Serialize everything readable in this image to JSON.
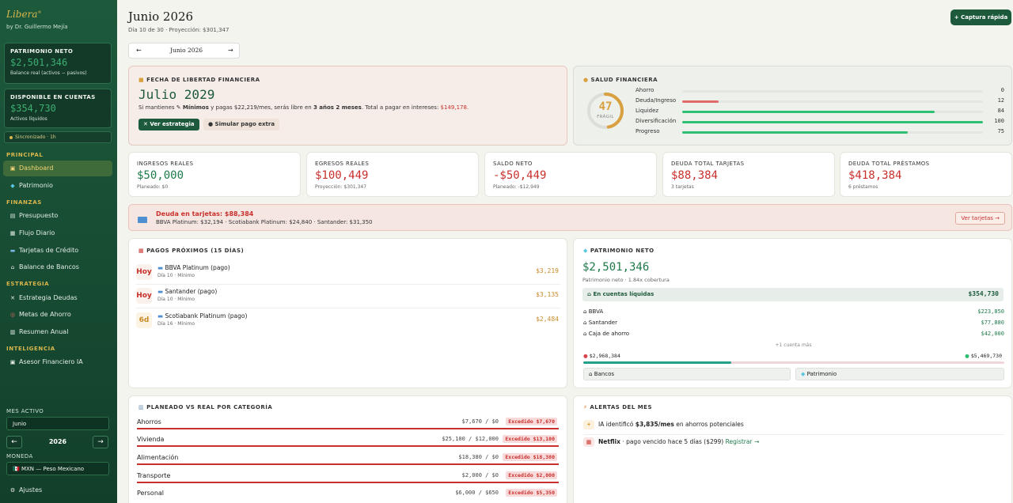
{
  "app": {
    "logo": "Libera",
    "logo_mark": "®",
    "byline": "by Dr. Guillermo Mejía"
  },
  "sidebar": {
    "net_worth": {
      "title": "PATRIMONIO NETO",
      "value": "$2,501,346",
      "sub": "Balance real (activos − pasivos)"
    },
    "available": {
      "title": "DISPONIBLE EN CUENTAS",
      "value": "$354,730",
      "sub": "Activos líquidos"
    },
    "sync": "Sincronizado · 1h",
    "sections": {
      "principal": "PRINCIPAL",
      "finanzas": "FINANZAS",
      "estrategia": "ESTRATEGIA",
      "inteligencia": "INTELIGENCIA"
    },
    "items": [
      {
        "label": "Dashboard",
        "icon": "home-icon"
      },
      {
        "label": "Patrimonio",
        "icon": "diamond-icon"
      },
      {
        "label": "Presupuesto",
        "icon": "clipboard-icon"
      },
      {
        "label": "Flujo Diario",
        "icon": "calendar-icon"
      },
      {
        "label": "Tarjetas de Crédito",
        "icon": "card-icon"
      },
      {
        "label": "Balance de Bancos",
        "icon": "bank-icon"
      },
      {
        "label": "Estrategia Deudas",
        "icon": "sword-icon"
      },
      {
        "label": "Metas de Ahorro",
        "icon": "target-icon"
      },
      {
        "label": "Resumen Anual",
        "icon": "chart-icon"
      },
      {
        "label": "Asesor Financiero IA",
        "icon": "robot-icon"
      }
    ],
    "active_month_label": "MES ACTIVO",
    "active_month": "Junio",
    "year": "2026",
    "year_prev": "←",
    "year_next": "→",
    "currency_label": "MONEDA",
    "currency": "MXN — Peso Mexicano",
    "currency_flag": "🇲🇽",
    "settings": "Ajustes"
  },
  "header": {
    "title": "Junio 2026",
    "subtitle": "Día 10 de 30 · Proyección: $301,347",
    "quick_capture": "+ Captura rápida",
    "month_nav": {
      "prev": "←",
      "label": "Junio 2026",
      "next": "→"
    }
  },
  "freedom": {
    "title": "FECHA DE LIBERTAD FINANCIERA",
    "date": "Julio 2029",
    "text_a": "Si mantienes",
    "text_b": "Mínimos",
    "text_c": "y pagas $22,219/mes, serás libre en",
    "text_d": "3 años 2 meses",
    "text_e": ". Total a pagar en intereses:",
    "interest": "$149,178.",
    "btn_strategy": "Ver estrategia",
    "btn_simulate": "Simular pago extra"
  },
  "health": {
    "title": "SALUD FINANCIERA",
    "score": "47",
    "status": "FRÁGIL",
    "score_fraction": 0.47,
    "metrics": [
      {
        "label": "Ahorro",
        "value": 0,
        "display": "0",
        "color": "#d9ddd8"
      },
      {
        "label": "Deuda/Ingreso",
        "value": 12,
        "display": "12",
        "color": "#e06a6a"
      },
      {
        "label": "Liquidez",
        "value": 84,
        "display": "84",
        "color": "#2fbf72"
      },
      {
        "label": "Diversificación",
        "value": 100,
        "display": "100",
        "color": "#2fbf72"
      },
      {
        "label": "Progreso",
        "value": 75,
        "display": "75",
        "color": "#2fbf72"
      }
    ]
  },
  "kpis": [
    {
      "title": "INGRESOS REALES",
      "value": "$50,000",
      "sub": "Planeado: $0",
      "tone": "green"
    },
    {
      "title": "EGRESOS REALES",
      "value": "$100,449",
      "sub": "Proyección: $301,347",
      "tone": "red"
    },
    {
      "title": "SALDO NETO",
      "value": "-$50,449",
      "sub": "Planeado: -$12,949",
      "tone": "red"
    },
    {
      "title": "DEUDA TOTAL TARJETAS",
      "value": "$88,384",
      "sub": "3 tarjetas",
      "tone": "red"
    },
    {
      "title": "DEUDA TOTAL PRÉSTAMOS",
      "value": "$418,384",
      "sub": "6 préstamos",
      "tone": "red"
    }
  ],
  "debt_alert": {
    "title": "Deuda en tarjetas: $88,384",
    "detail": "BBVA Platinum: $32,194 · Scotiabank Platinum: $24,840 · Santander: $31,350",
    "button": "Ver tarjetas →"
  },
  "payments": {
    "title": "PAGOS PRÓXIMOS (15 DÍAS)",
    "rows": [
      {
        "badge": "Hoy",
        "name": "BBVA Platinum (pago)",
        "detail": "Día 10 · Mínimo",
        "amount": "$3,219"
      },
      {
        "badge": "Hoy",
        "name": "Santander (pago)",
        "detail": "Día 10 · Mínimo",
        "amount": "$3,135"
      },
      {
        "badge": "6d",
        "name": "Scotiabank Platinum (pago)",
        "detail": "Día 16 · Mínimo",
        "amount": "$2,484"
      }
    ]
  },
  "networth": {
    "title": "PATRIMONIO NETO",
    "value": "$2,501,346",
    "sub": "Patrimonio neto · 1.84x cobertura",
    "liquid_label": "En cuentas líquidas",
    "liquid_value": "$354,730",
    "banks": [
      {
        "name": "BBVA",
        "amount": "$223,850"
      },
      {
        "name": "Santander",
        "amount": "$77,880"
      },
      {
        "name": "Caja de ahorro",
        "amount": "$42,000"
      }
    ],
    "more": "+1 cuenta más",
    "liabilities": "$2,968,384",
    "assets": "$5,469,730",
    "split_fraction": 0.352,
    "tab_banks": "Bancos",
    "tab_patrimonio": "Patrimonio"
  },
  "categories": {
    "title": "PLANEADO VS REAL POR CATEGORÍA",
    "rows": [
      {
        "name": "Ahorros",
        "values": "$7,670 / $0",
        "exceeded": "Excedido $7,670"
      },
      {
        "name": "Vivienda",
        "values": "$25,100 / $12,000",
        "exceeded": "Excedido $13,100"
      },
      {
        "name": "Alimentación",
        "values": "$18,380 / $0",
        "exceeded": "Excedido $18,380"
      },
      {
        "name": "Transporte",
        "values": "$2,000 / $0",
        "exceeded": "Excedido $2,000"
      },
      {
        "name": "Personal",
        "values": "$6,000 / $650",
        "exceeded": "Excedido $5,350"
      }
    ]
  },
  "alerts": {
    "title": "ALERTAS DEL MES",
    "rows": [
      {
        "a": "IA identificó",
        "b": "$3,835/mes",
        "c": "en ahorros potenciales"
      },
      {
        "a": "Netflix",
        "b": "· pago vencido hace 5 días ($299)",
        "c": "Registrar →"
      }
    ]
  },
  "colors": {
    "brand_green": "#1d5a3c",
    "gold": "#d9b64c",
    "danger": "#c9302c",
    "success": "#1f7a4a"
  }
}
